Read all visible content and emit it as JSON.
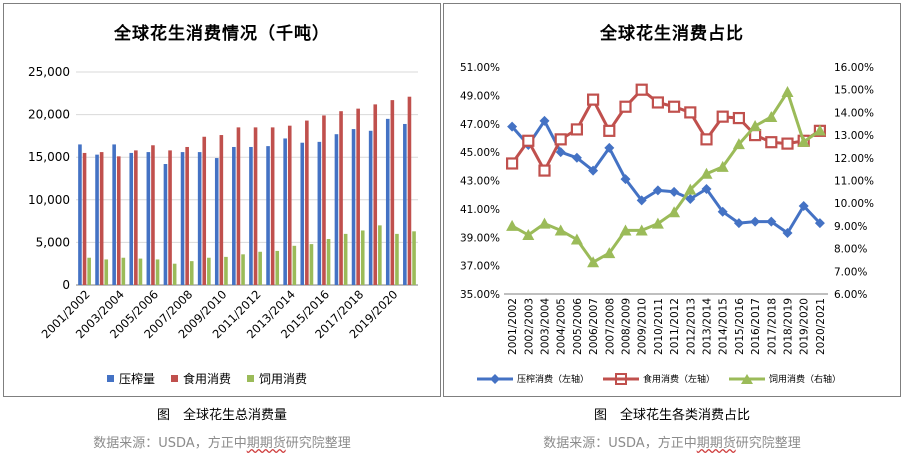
{
  "left_chart": {
    "title": "全球花生消费情况（千吨）",
    "caption": "图　全球花生总消费量",
    "source_prefix": "数据来源：USDA，方正中",
    "source_mid": "期期货",
    "source_suffix": "研究院整理"
  },
  "right_chart": {
    "title": "全球花生消费占比",
    "caption": "图　全球花生各类消费占比",
    "source_prefix": "数据来源：USDA，方正中",
    "source_mid": "期期货",
    "source_suffix": "研究院整理"
  },
  "colors": {
    "crush": "#4472c4",
    "food": "#c0504d",
    "feed": "#9bbb59",
    "grid": "#d9d9d9",
    "axis": "#7f7f7f"
  },
  "chart_data": [
    {
      "type": "bar",
      "title": "全球花生消费情况（千吨）",
      "ylim": [
        0,
        25000
      ],
      "y_ticks": [
        "0",
        "5,000",
        "10,000",
        "15,000",
        "20,000",
        "25,000"
      ],
      "x_tick_labels": [
        "2001/2002",
        "2003/2004",
        "2005/2006",
        "2007/2008",
        "2009/2010",
        "2011/2012",
        "2013/2014",
        "2015/2016",
        "2017/2018",
        "2019/2020"
      ],
      "categories": [
        "2001/2002",
        "2002/2003",
        "2003/2004",
        "2004/2005",
        "2005/2006",
        "2006/2007",
        "2007/2008",
        "2008/2009",
        "2009/2010",
        "2010/2011",
        "2011/2012",
        "2012/2013",
        "2013/2014",
        "2014/2015",
        "2015/2016",
        "2016/2017",
        "2017/2018",
        "2018/2019",
        "2019/2020",
        "2020/2021"
      ],
      "legend_position": "bottom",
      "series": [
        {
          "name": "压榨量",
          "values": [
            16500,
            15300,
            16500,
            15500,
            15600,
            14200,
            15600,
            15600,
            14900,
            16200,
            16200,
            16300,
            17200,
            16700,
            16800,
            17700,
            18300,
            18100,
            19500,
            18900
          ]
        },
        {
          "name": "食用消费",
          "values": [
            15500,
            15600,
            15100,
            15800,
            16400,
            15800,
            16200,
            17400,
            17600,
            18500,
            18500,
            18500,
            18700,
            19300,
            19900,
            20400,
            20700,
            21200,
            21700,
            22100
          ]
        },
        {
          "name": "饲用消费",
          "values": [
            3200,
            3000,
            3200,
            3100,
            3000,
            2500,
            2800,
            3200,
            3300,
            3600,
            3900,
            4000,
            4600,
            4800,
            5400,
            6000,
            6400,
            7000,
            6000,
            6300
          ]
        }
      ]
    },
    {
      "type": "line",
      "title": "全球花生消费占比",
      "categories": [
        "2001/2002",
        "2002/2003",
        "2003/2004",
        "2004/2005",
        "2005/2006",
        "2006/2007",
        "2007/2008",
        "2008/2009",
        "2009/2010",
        "2010/2011",
        "2011/2012",
        "2012/2013",
        "2013/2014",
        "2014/2015",
        "2015/2016",
        "2016/2017",
        "2017/2018",
        "2018/2019",
        "2019/2020",
        "2020/2021"
      ],
      "y_left_ticks": [
        "35.00%",
        "37.00%",
        "39.00%",
        "41.00%",
        "43.00%",
        "45.00%",
        "47.00%",
        "49.00%",
        "51.00%"
      ],
      "y_right_ticks": [
        "6.00%",
        "7.00%",
        "8.00%",
        "9.00%",
        "10.00%",
        "11.00%",
        "12.00%",
        "13.00%",
        "14.00%",
        "15.00%",
        "16.00%"
      ],
      "y_left_lim": [
        35,
        51
      ],
      "y_right_lim": [
        6,
        16
      ],
      "legend_position": "bottom",
      "series": [
        {
          "name": "压榨消费（左轴）",
          "axis": "left",
          "marker": "diamond",
          "values": [
            46.8,
            45.5,
            47.2,
            45.0,
            44.6,
            43.7,
            45.3,
            43.1,
            41.6,
            42.3,
            42.2,
            41.7,
            42.4,
            40.8,
            40.0,
            40.1,
            40.1,
            39.3,
            41.2,
            40.0
          ]
        },
        {
          "name": "食用消费（左轴）",
          "axis": "left",
          "marker": "square",
          "values": [
            44.2,
            45.8,
            43.7,
            45.9,
            46.6,
            48.7,
            46.5,
            48.2,
            49.4,
            48.5,
            48.2,
            47.8,
            45.9,
            47.5,
            47.4,
            46.2,
            45.7,
            45.6,
            45.8,
            46.5
          ]
        },
        {
          "name": "饲用消费（右轴）",
          "axis": "right",
          "marker": "triangle",
          "values": [
            9.0,
            8.6,
            9.1,
            8.8,
            8.4,
            7.4,
            7.8,
            8.8,
            8.8,
            9.1,
            9.6,
            10.6,
            11.3,
            11.6,
            12.6,
            13.4,
            13.8,
            14.9,
            12.7,
            13.2
          ]
        }
      ]
    }
  ]
}
